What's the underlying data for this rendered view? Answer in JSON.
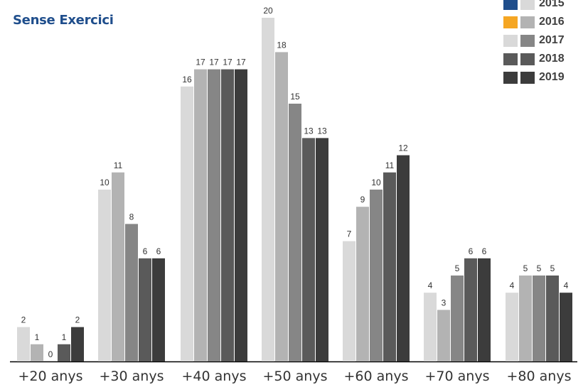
{
  "chart_data": {
    "type": "bar",
    "title": "Sense Exercici",
    "categories": [
      "+20 anys",
      "+30 anys",
      "+40 anys",
      "+50 anys",
      "+60 anys",
      "+70 anys",
      "+80 anys"
    ],
    "series": [
      {
        "name": "2015",
        "values": [
          2,
          10,
          16,
          20,
          7,
          4,
          4
        ]
      },
      {
        "name": "2016",
        "values": [
          1,
          11,
          17,
          18,
          9,
          3,
          5
        ]
      },
      {
        "name": "2017",
        "values": [
          0,
          8,
          17,
          15,
          10,
          5,
          5
        ]
      },
      {
        "name": "2018",
        "values": [
          1,
          6,
          17,
          13,
          11,
          6,
          5
        ]
      },
      {
        "name": "2019",
        "values": [
          2,
          6,
          17,
          13,
          12,
          6,
          4
        ]
      }
    ],
    "bar_colors": [
      "#d9d9d9",
      "#b3b3b3",
      "#868686",
      "#5a5a5a",
      "#3c3c3c"
    ],
    "legend": [
      {
        "label": "2015",
        "color_a": "#1f4e8c",
        "color_b": "#d9d9d9"
      },
      {
        "label": "2016",
        "color_a": "#f5a623",
        "color_b": "#b3b3b3"
      },
      {
        "label": "2017",
        "color_a": "#d9d9d9",
        "color_b": "#868686"
      },
      {
        "label": "2018",
        "color_a": "#5a5a5a",
        "color_b": "#5a5a5a"
      },
      {
        "label": "2019",
        "color_a": "#3c3c3c",
        "color_b": "#3c3c3c"
      }
    ],
    "legend_position": "top-right",
    "ylim": [
      0,
      20
    ],
    "grid": false,
    "title_color": "#1f4e8c",
    "axis_color": "#000000"
  }
}
